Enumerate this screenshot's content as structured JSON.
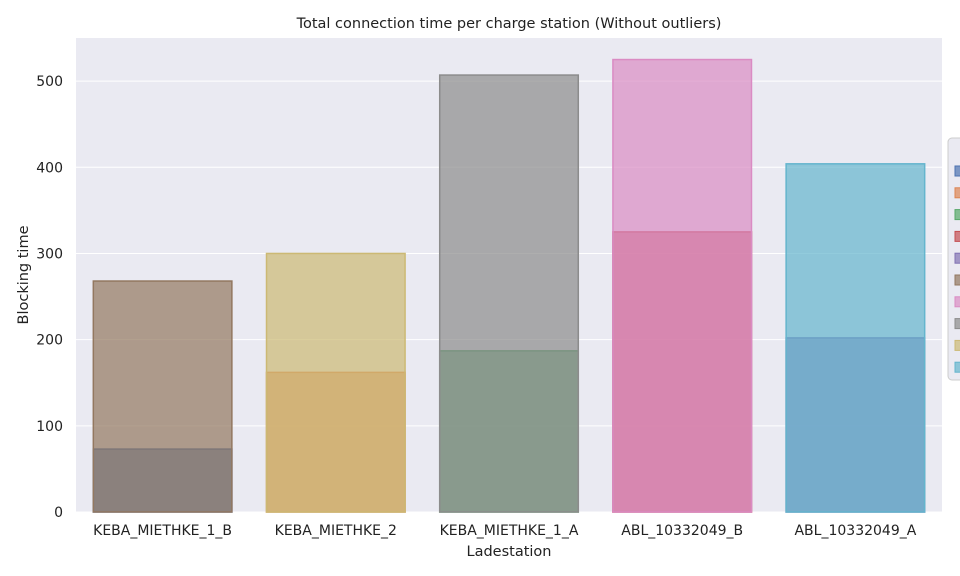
{
  "chart_data": {
    "type": "bar",
    "title": "Total connection time per charge station (Without outliers)",
    "xlabel": "Ladestation",
    "ylabel": "Blocking time",
    "ylim": [
      0,
      550
    ],
    "yticks": [
      0,
      100,
      200,
      300,
      400,
      500
    ],
    "grid": true,
    "legend": "right (partially cut off, no visible labels)",
    "background": "#eaeaf2",
    "categories": [
      "KEBA_MIETHKE_1_B",
      "KEBA_MIETHKE_2",
      "KEBA_MIETHKE_1_A",
      "ABL_10332049_B",
      "ABL_10332049_A"
    ],
    "bars": [
      {
        "category": "KEBA_MIETHKE_1_B",
        "value": 73,
        "color": "#4c72b0"
      },
      {
        "category": "KEBA_MIETHKE_2",
        "value": 162,
        "color": "#dd8452"
      },
      {
        "category": "KEBA_MIETHKE_1_A",
        "value": 187,
        "color": "#55a868"
      },
      {
        "category": "ABL_10332049_B",
        "value": 325,
        "color": "#c44e52"
      },
      {
        "category": "ABL_10332049_A",
        "value": 202,
        "color": "#8172b3"
      },
      {
        "category": "KEBA_MIETHKE_1_B",
        "value": 268,
        "color": "#937860"
      },
      {
        "category": "ABL_10332049_B",
        "value": 525,
        "color": "#da8bc3"
      },
      {
        "category": "KEBA_MIETHKE_1_A",
        "value": 507,
        "color": "#8c8c8c"
      },
      {
        "category": "KEBA_MIETHKE_2",
        "value": 300,
        "color": "#ccb974"
      },
      {
        "category": "ABL_10332049_A",
        "value": 404,
        "color": "#64b5cd"
      }
    ],
    "legend_colors": [
      "#4c72b0",
      "#dd8452",
      "#55a868",
      "#c44e52",
      "#8172b3",
      "#937860",
      "#da8bc3",
      "#8c8c8c",
      "#ccb974",
      "#64b5cd"
    ]
  }
}
